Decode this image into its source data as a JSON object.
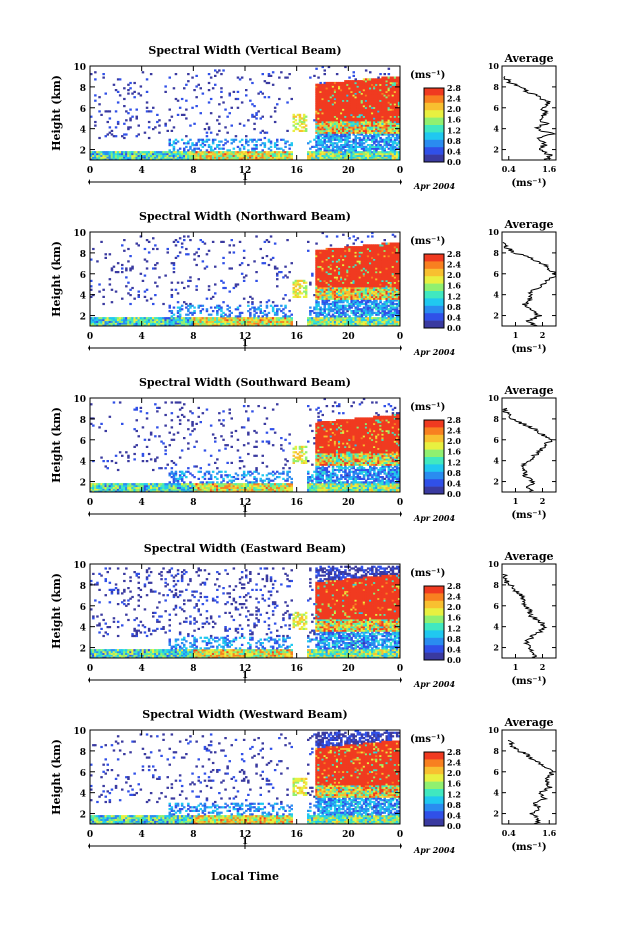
{
  "figure": {
    "xlabel": "Local Time",
    "date_label": "Apr 2004",
    "day_label": "1",
    "units_label": "(ms⁻¹)"
  },
  "colorbar": {
    "ticks": [
      "0.0",
      "0.4",
      "0.8",
      "1.2",
      "1.6",
      "2.0",
      "2.4",
      "2.8"
    ],
    "range": [
      0,
      2.8
    ],
    "colors": [
      "#3a3aa0",
      "#3050e8",
      "#2a8cf0",
      "#20c8f0",
      "#40e8c0",
      "#90f070",
      "#e8f040",
      "#f8c030",
      "#f88020",
      "#f03a20"
    ]
  },
  "chart_data": [
    {
      "type": "heatmap",
      "title": "Spectral Width (Vertical Beam)",
      "ylabel": "Height (km)",
      "xlim": [
        0,
        24
      ],
      "ylim": [
        1,
        10
      ],
      "xticks": [
        "0",
        "4",
        "8",
        "12",
        "16",
        "20",
        "0"
      ],
      "yticks": [
        "2",
        "4",
        "6",
        "8",
        "10"
      ],
      "profile": {
        "title": "Average",
        "xlabel": "(ms⁻¹)",
        "xlim": [
          0.2,
          1.8
        ],
        "xticks": [
          "0.4",
          "1.6"
        ],
        "xtick_values": [
          0.4,
          1.6
        ],
        "ylim": [
          1,
          10
        ],
        "yticks": [
          "2",
          "4",
          "6",
          "8",
          "10"
        ],
        "heights": [
          1.0,
          1.5,
          2.0,
          2.5,
          3.0,
          3.5,
          4.0,
          4.5,
          5.0,
          5.5,
          6.0,
          6.5,
          7.0,
          7.5,
          8.0,
          8.5,
          9.0
        ],
        "values": [
          1.5,
          1.6,
          1.3,
          1.5,
          1.2,
          1.7,
          1.2,
          1.5,
          1.3,
          1.5,
          1.4,
          1.6,
          1.3,
          1.0,
          0.7,
          0.4,
          0.3
        ]
      }
    },
    {
      "type": "heatmap",
      "title": "Spectral Width (Northward Beam)",
      "ylabel": "Height (km)",
      "xlim": [
        0,
        24
      ],
      "ylim": [
        1,
        10
      ],
      "xticks": [
        "0",
        "4",
        "8",
        "12",
        "16",
        "20",
        "0"
      ],
      "yticks": [
        "2",
        "4",
        "6",
        "8",
        "10"
      ],
      "profile": {
        "title": "Average",
        "xlabel": "(ms⁻¹)",
        "xlim": [
          0.5,
          2.5
        ],
        "xticks": [
          "1",
          "2"
        ],
        "xtick_values": [
          1,
          2
        ],
        "ylim": [
          1,
          10
        ],
        "yticks": [
          "2",
          "4",
          "6",
          "8",
          "10"
        ],
        "heights": [
          1.0,
          1.5,
          2.0,
          2.5,
          3.0,
          3.5,
          4.0,
          4.5,
          5.0,
          5.5,
          6.0,
          6.5,
          7.0,
          7.5,
          8.0,
          8.5,
          9.0
        ],
        "values": [
          1.7,
          1.5,
          1.9,
          1.6,
          1.3,
          1.5,
          1.5,
          1.7,
          2.0,
          2.3,
          2.5,
          2.2,
          2.0,
          1.6,
          1.0,
          0.7,
          0.6
        ]
      }
    },
    {
      "type": "heatmap",
      "title": "Spectral Width (Southward Beam)",
      "ylabel": "Height (km)",
      "xlim": [
        0,
        24
      ],
      "ylim": [
        1,
        10
      ],
      "xticks": [
        "0",
        "4",
        "8",
        "12",
        "16",
        "20",
        "0"
      ],
      "yticks": [
        "2",
        "4",
        "6",
        "8",
        "10"
      ],
      "profile": {
        "title": "Average",
        "xlabel": "(ms⁻¹)",
        "xlim": [
          0.5,
          2.5
        ],
        "xticks": [
          "1",
          "2"
        ],
        "xtick_values": [
          1,
          2
        ],
        "ylim": [
          1,
          10
        ],
        "yticks": [
          "2",
          "4",
          "6",
          "8",
          "10"
        ],
        "heights": [
          1.0,
          1.5,
          2.0,
          2.5,
          3.0,
          3.5,
          4.0,
          4.5,
          5.0,
          5.5,
          6.0,
          6.5,
          7.0,
          7.5,
          8.0,
          8.5,
          9.0
        ],
        "values": [
          1.6,
          1.4,
          1.7,
          1.3,
          1.4,
          1.2,
          1.5,
          1.7,
          1.9,
          2.1,
          2.3,
          2.0,
          1.7,
          1.3,
          0.9,
          0.7,
          0.6
        ]
      }
    },
    {
      "type": "heatmap",
      "title": "Spectral Width (Eastward Beam)",
      "ylabel": "Height (km)",
      "xlim": [
        0,
        24
      ],
      "ylim": [
        1,
        10
      ],
      "xticks": [
        "0",
        "4",
        "8",
        "12",
        "16",
        "20",
        "0"
      ],
      "yticks": [
        "2",
        "4",
        "6",
        "8",
        "10"
      ],
      "profile": {
        "title": "Average",
        "xlabel": "(ms⁻¹)",
        "xlim": [
          0.5,
          2.5
        ],
        "xticks": [
          "1",
          "2"
        ],
        "xtick_values": [
          1,
          2
        ],
        "ylim": [
          1,
          10
        ],
        "yticks": [
          "2",
          "4",
          "6",
          "8",
          "10"
        ],
        "heights": [
          1.0,
          1.5,
          2.0,
          2.5,
          3.0,
          3.5,
          4.0,
          4.5,
          5.0,
          5.5,
          6.0,
          6.5,
          7.0,
          7.5,
          8.0,
          8.5,
          9.0
        ],
        "values": [
          1.7,
          1.6,
          1.5,
          1.4,
          1.6,
          1.9,
          2.1,
          1.9,
          1.6,
          1.5,
          1.4,
          1.3,
          1.2,
          1.0,
          0.8,
          0.6,
          0.6
        ]
      }
    },
    {
      "type": "heatmap",
      "title": "Spectral Width (Westward Beam)",
      "ylabel": "Height (km)",
      "xlim": [
        0,
        24
      ],
      "ylim": [
        1,
        10
      ],
      "xticks": [
        "0",
        "4",
        "8",
        "12",
        "16",
        "20",
        "0"
      ],
      "yticks": [
        "2",
        "4",
        "6",
        "8",
        "10"
      ],
      "profile": {
        "title": "Average",
        "xlabel": "(ms⁻¹)",
        "xlim": [
          0.2,
          1.8
        ],
        "xticks": [
          "0.4",
          "1.6"
        ],
        "xtick_values": [
          0.4,
          1.6
        ],
        "ylim": [
          1,
          10
        ],
        "yticks": [
          "2",
          "4",
          "6",
          "8",
          "10"
        ],
        "heights": [
          1.0,
          1.5,
          2.0,
          2.5,
          3.0,
          3.5,
          4.0,
          4.5,
          5.0,
          5.5,
          6.0,
          6.5,
          7.0,
          7.5,
          8.0,
          8.5,
          9.0
        ],
        "values": [
          1.2,
          1.3,
          1.1,
          1.3,
          1.2,
          1.5,
          1.3,
          1.6,
          1.5,
          1.6,
          1.7,
          1.5,
          1.2,
          1.0,
          0.7,
          0.5,
          0.4
        ]
      }
    }
  ]
}
